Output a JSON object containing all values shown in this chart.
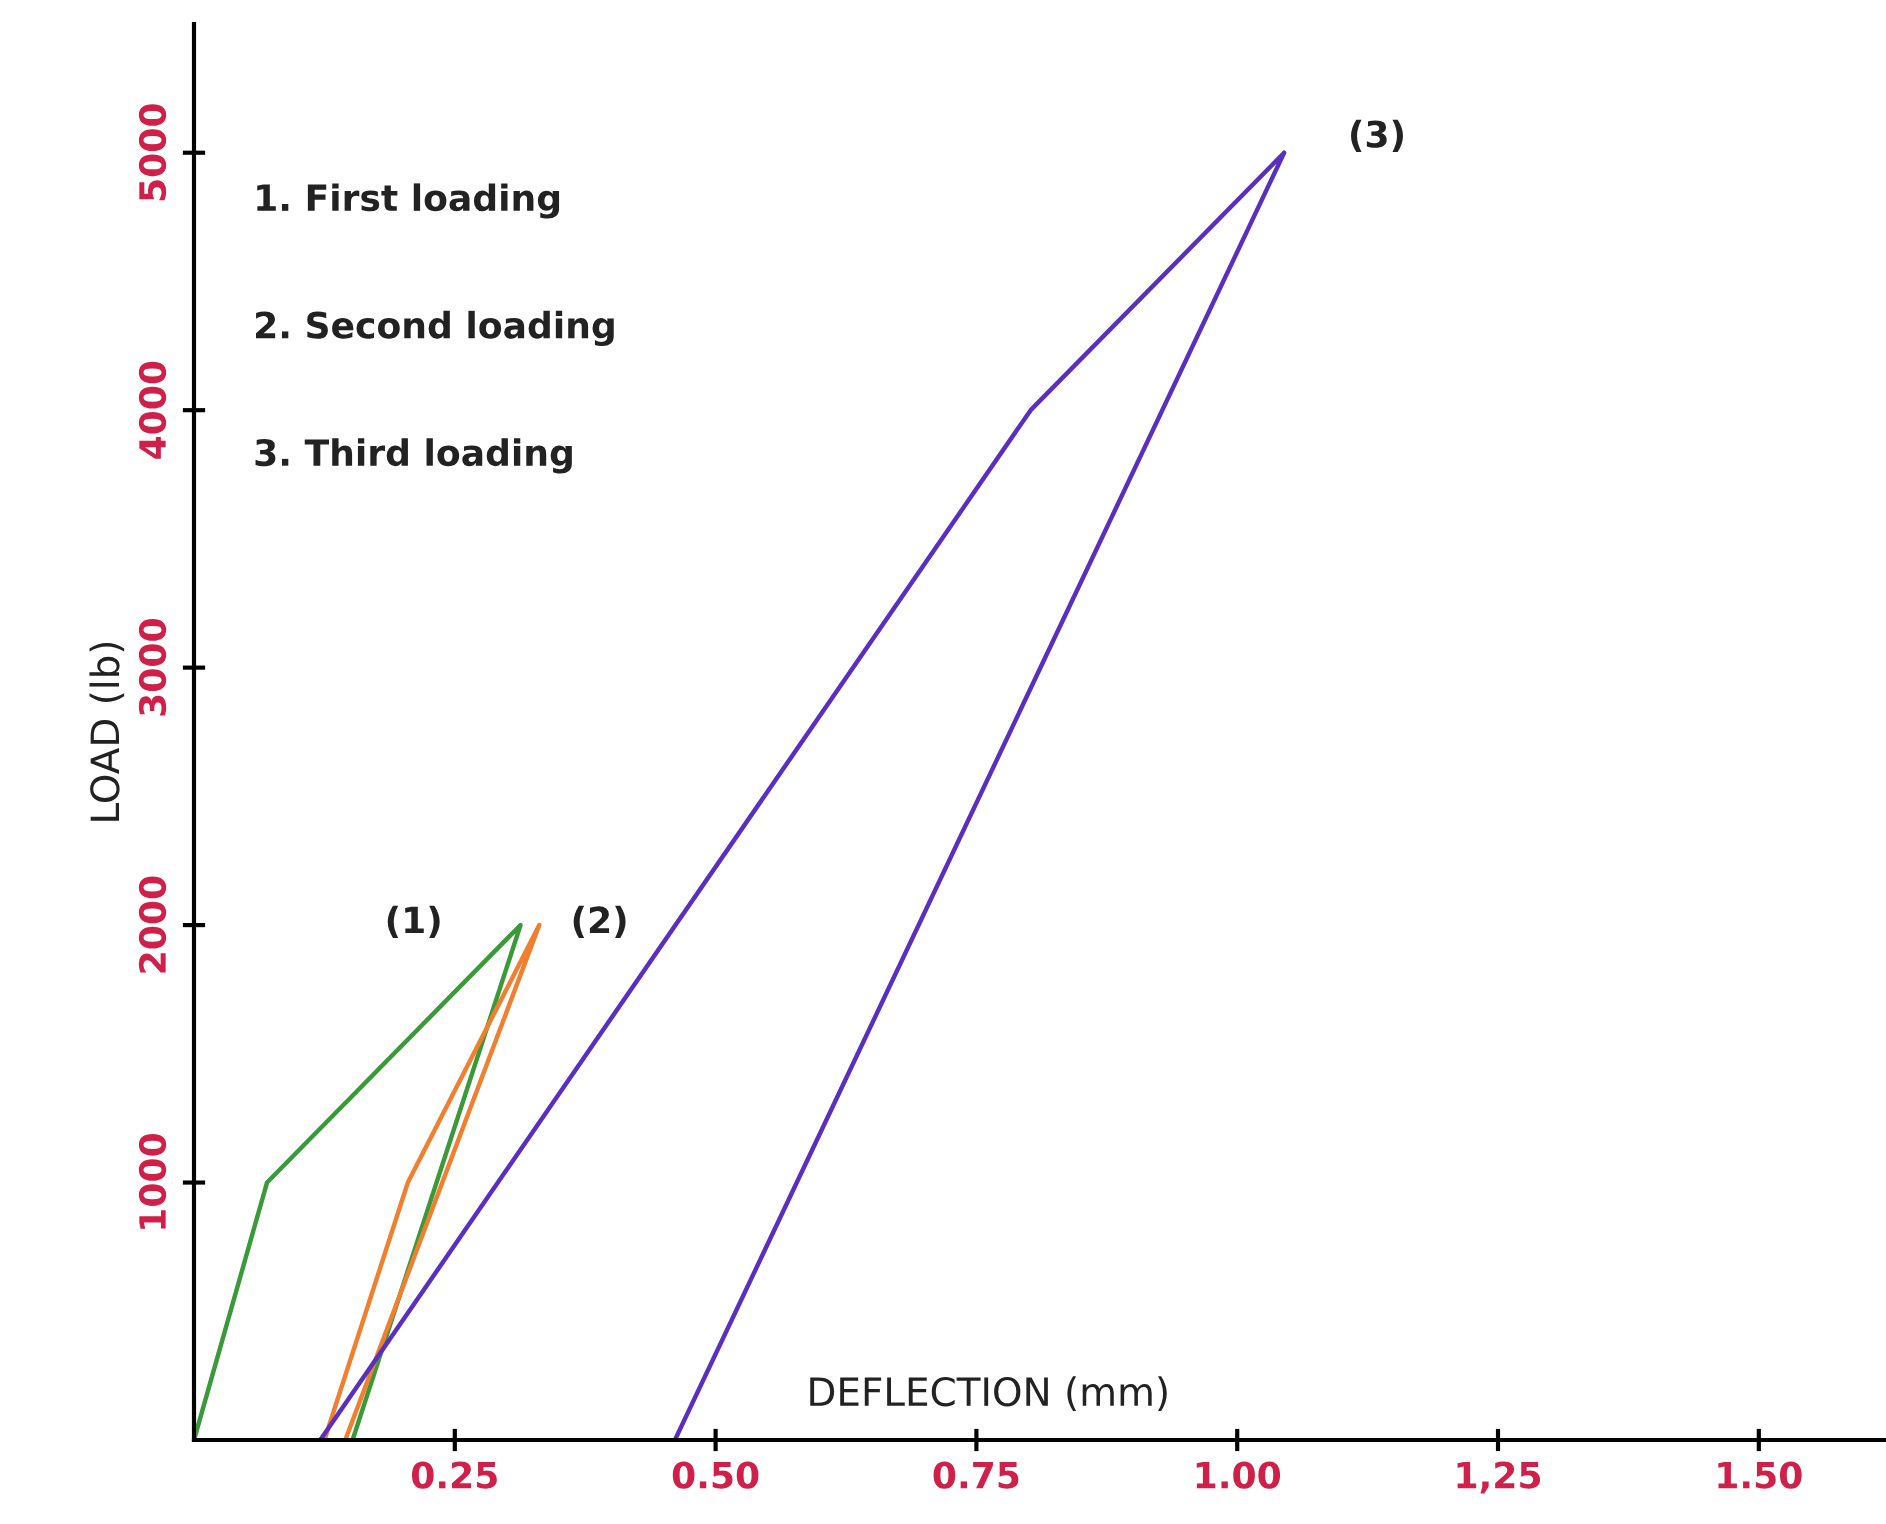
{
  "chart_data": {
    "type": "line",
    "xlabel": "DEFLECTION (mm)",
    "ylabel": "LOAD (lb)",
    "xlim": [
      0,
      1.62
    ],
    "ylim": [
      0,
      5500
    ],
    "xticks": [
      {
        "value": 0.25,
        "label": "0.25"
      },
      {
        "value": 0.5,
        "label": "0.50"
      },
      {
        "value": 0.75,
        "label": "0.75"
      },
      {
        "value": 1.0,
        "label": "1.00"
      },
      {
        "value": 1.25,
        "label": "1,25"
      },
      {
        "value": 1.5,
        "label": "1.50"
      }
    ],
    "yticks": [
      1000,
      2000,
      3000,
      4000,
      5000
    ],
    "grid": false,
    "legend": false,
    "marker": "none",
    "line_style": "solid",
    "series": [
      {
        "color": "#3a9a3a",
        "x": [
          0,
          0.07,
          0.313,
          0.152
        ],
        "values": [
          0,
          1000,
          2000,
          0
        ]
      },
      {
        "color": "#f07f30",
        "x": [
          0.125,
          0.205,
          0.331,
          0.145
        ],
        "values": [
          0,
          1000,
          2000,
          0
        ]
      },
      {
        "color": "#5a2fc0",
        "x": [
          0.121,
          0.802,
          1.045,
          0.461
        ],
        "values": [
          0,
          4000,
          5000,
          0
        ]
      }
    ],
    "annotations": [
      "(1)",
      "(2)",
      "(3)",
      "1. First loading",
      "2. Second loading",
      "3. Third loading"
    ]
  }
}
